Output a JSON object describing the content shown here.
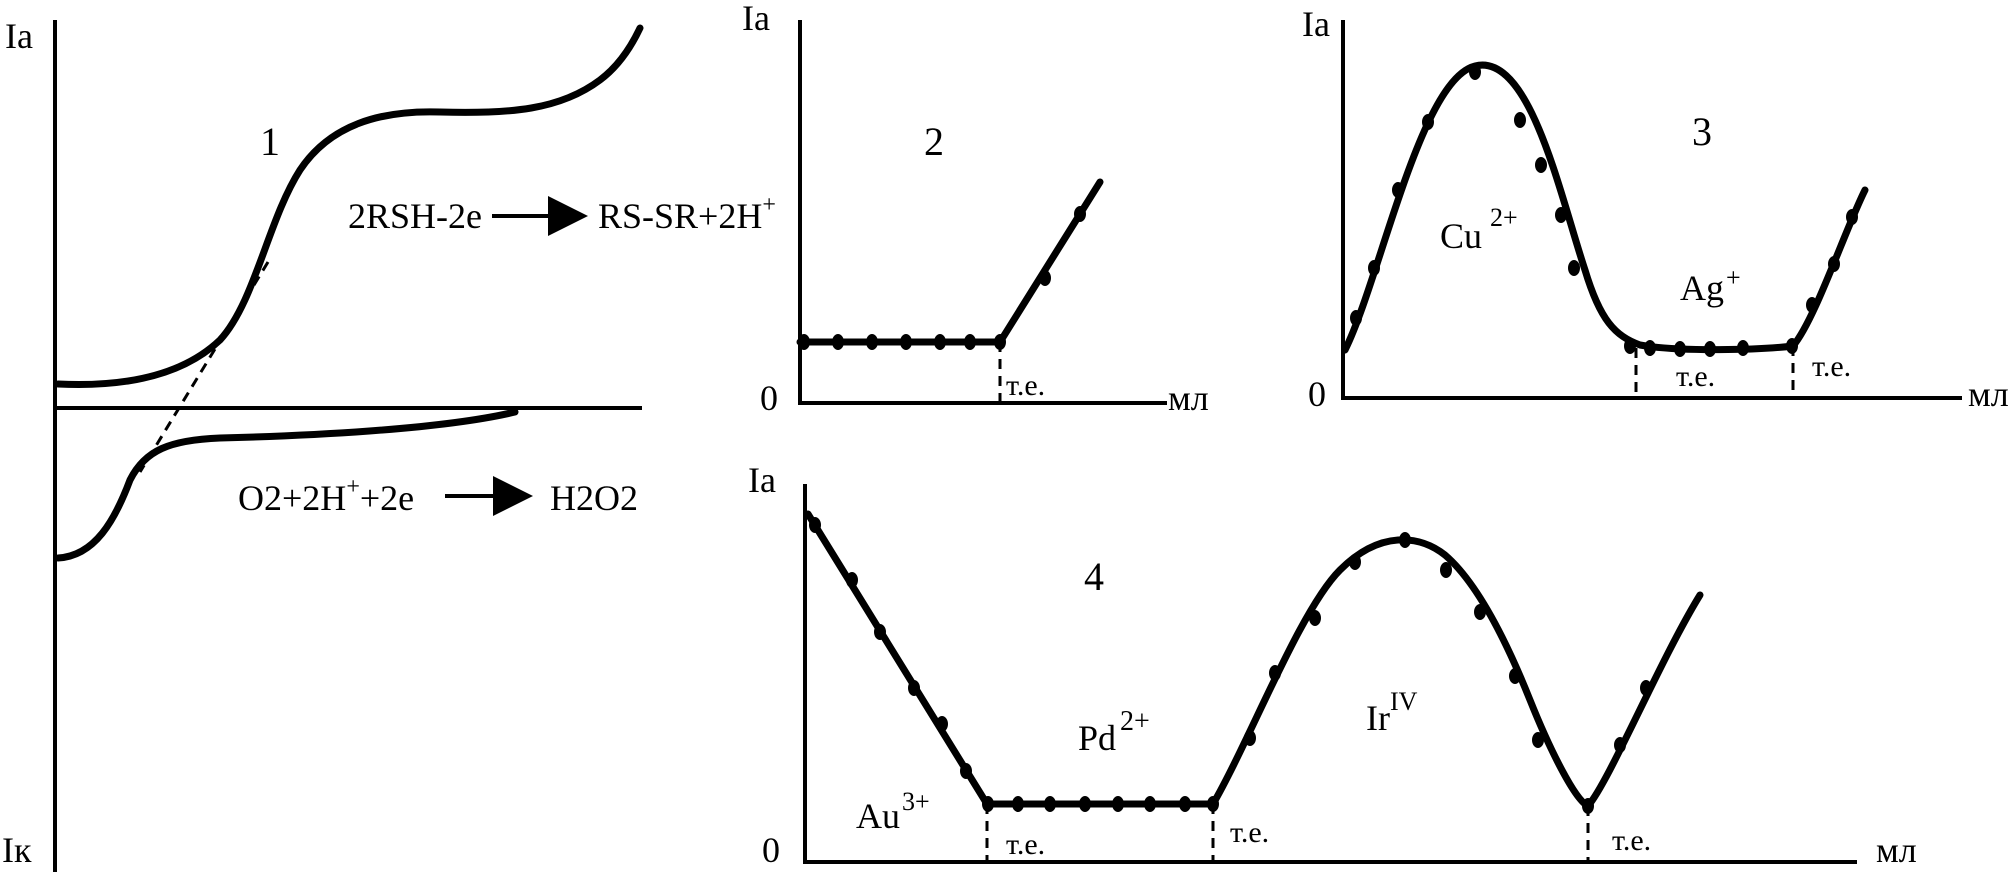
{
  "panel1": {
    "number": "1",
    "y_top": "Ia",
    "y_bottom": "Iк",
    "reaction_anodic": {
      "left": "2RSH-2e",
      "right": "RS-SR+2H",
      "right_sup": "+"
    },
    "reaction_cathodic": {
      "left": "O2+2H",
      "left_sup": "+",
      "left_tail": "+2e",
      "right": "H2O2"
    }
  },
  "panel2": {
    "number": "2",
    "y_label": "Ia",
    "zero": "0",
    "x_unit": "мл",
    "endpoint": "т.е."
  },
  "panel3": {
    "number": "3",
    "y_label": "Ia",
    "zero": "0",
    "x_unit": "мл",
    "ion1": "Cu",
    "ion1_sup": "2+",
    "ion2": "Ag",
    "ion2_sup": "+",
    "endpoint1": "т.е.",
    "endpoint2": "т.е."
  },
  "panel4": {
    "number": "4",
    "y_label": "Ia",
    "zero": "0",
    "x_unit": "мл",
    "ion1": "Au",
    "ion1_sup": "3+",
    "ion2": "Pd",
    "ion2_sup": "2+",
    "ion3": "Ir",
    "ion3_sup": "IV",
    "endpoint1": "т.е.",
    "endpoint2": "т.е.",
    "endpoint3": "т.е."
  }
}
